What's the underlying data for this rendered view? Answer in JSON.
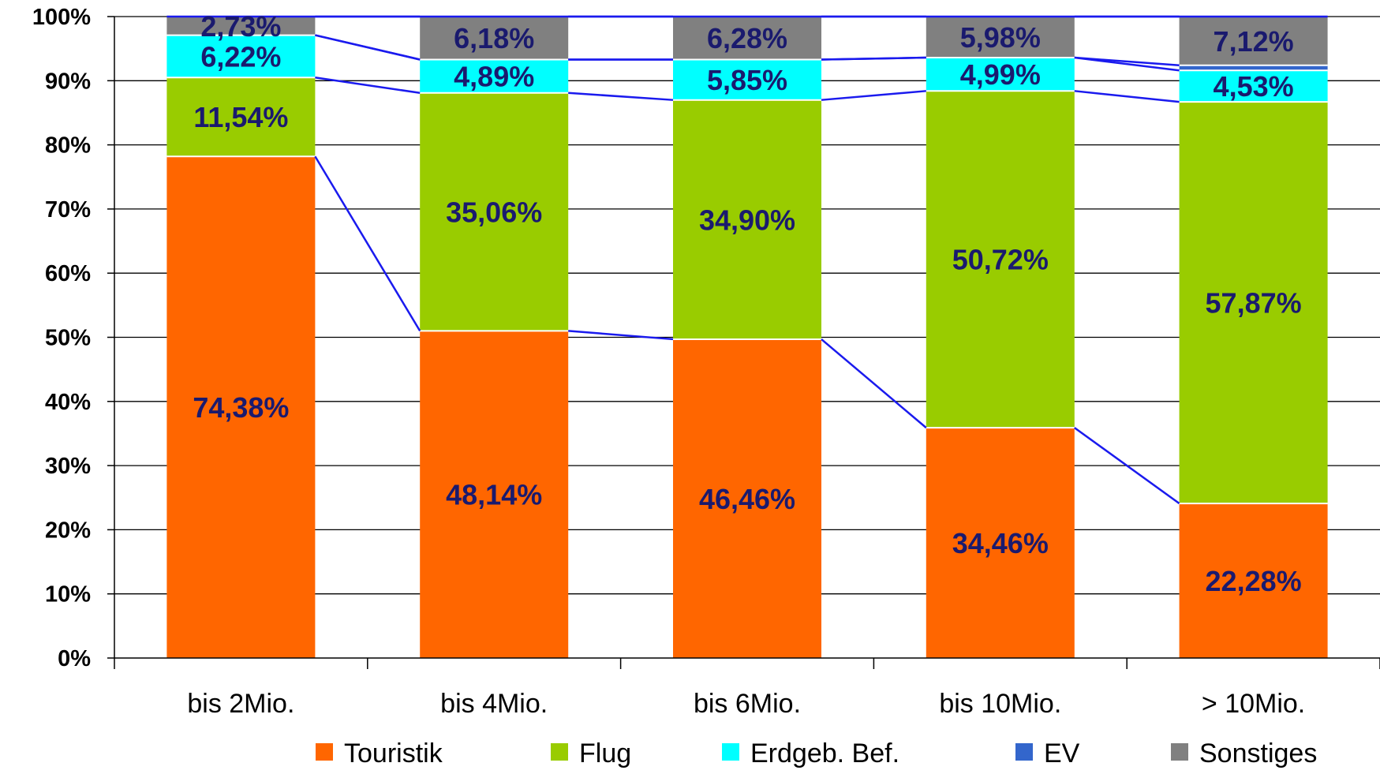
{
  "chart_data": {
    "type": "bar",
    "stacked": true,
    "percent": true,
    "categories": [
      "bis 2Mio.",
      "bis 4Mio.",
      "bis 6Mio.",
      "bis 10Mio.",
      "> 10Mio."
    ],
    "ylim": [
      0,
      100
    ],
    "yticks": [
      "0%",
      "10%",
      "20%",
      "30%",
      "40%",
      "50%",
      "60%",
      "70%",
      "80%",
      "90%",
      "100%"
    ],
    "series": [
      {
        "name": "Touristik",
        "color": "#ff6600",
        "values": [
          78.2,
          51.0,
          49.7,
          35.9,
          24.1
        ],
        "labels": [
          "74,38%",
          "48,14%",
          "46,46%",
          "34,46%",
          "22,28%"
        ]
      },
      {
        "name": "Flug",
        "color": "#99cc00",
        "values": [
          12.3,
          37.1,
          37.3,
          52.5,
          62.6
        ],
        "labels": [
          "11,54%",
          "35,06%",
          "34,90%",
          "50,72%",
          "57,87%"
        ]
      },
      {
        "name": "Erdgeb. Bef.",
        "color": "#00ffff",
        "values": [
          6.6,
          5.2,
          6.3,
          5.2,
          4.9
        ],
        "labels": [
          "6,22%",
          "4,89%",
          "5,85%",
          "4,99%",
          "4,53%"
        ]
      },
      {
        "name": "EV",
        "color": "#3366cc",
        "values": [
          0.0,
          0.0,
          0.0,
          0.0,
          0.8
        ],
        "labels": [
          "",
          "",
          "",
          "",
          ""
        ]
      },
      {
        "name": "Sonstiges",
        "color": "#808080",
        "values": [
          2.9,
          6.7,
          6.7,
          6.4,
          7.6
        ],
        "labels": [
          "2,73%",
          "6,18%",
          "6,28%",
          "5,98%",
          "7,12%"
        ]
      }
    ],
    "label_color": "#1a1a6e",
    "series_line_color": "#1a1aee",
    "grid": true,
    "legend": "bottom"
  }
}
